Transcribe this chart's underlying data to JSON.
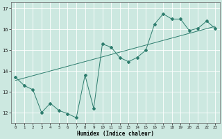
{
  "title": "",
  "xlabel": "Humidex (Indice chaleur)",
  "background_color": "#cce8e0",
  "grid_color": "#ffffff",
  "line_color": "#2e7d6e",
  "xlim": [
    -0.5,
    23.5
  ],
  "ylim": [
    11.5,
    17.3
  ],
  "xticks": [
    0,
    1,
    2,
    3,
    4,
    5,
    6,
    7,
    8,
    9,
    10,
    11,
    12,
    13,
    14,
    15,
    16,
    17,
    18,
    19,
    20,
    21,
    22,
    23
  ],
  "yticks": [
    12,
    13,
    14,
    15,
    16,
    17
  ],
  "scatter_x": [
    0,
    1,
    2,
    3,
    4,
    5,
    6,
    7,
    8,
    9,
    10,
    11,
    12,
    13,
    14,
    15,
    16,
    17,
    18,
    19,
    20,
    21,
    22,
    23
  ],
  "scatter_y": [
    13.7,
    13.3,
    13.1,
    12.0,
    12.45,
    12.1,
    11.95,
    11.75,
    13.8,
    12.2,
    15.3,
    15.15,
    14.65,
    14.45,
    14.65,
    15.0,
    16.25,
    16.75,
    16.5,
    16.5,
    15.95,
    16.05,
    16.4,
    16.05
  ],
  "trend_x": [
    0,
    23
  ],
  "trend_y": [
    13.55,
    16.15
  ]
}
